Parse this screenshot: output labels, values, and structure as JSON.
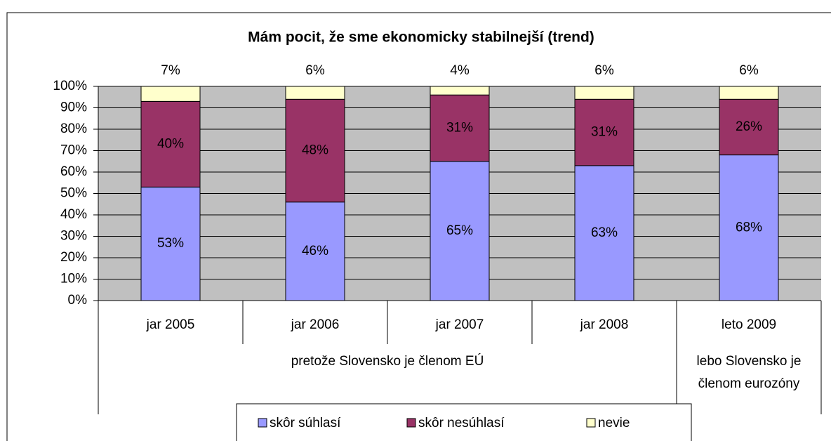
{
  "chart_data": {
    "type": "stacked_bar",
    "title": "Mám pocit, že sme ekonomicky stabilnejší (trend)",
    "groups": [
      {
        "label": "pretože Slovensko je členom EÚ",
        "categories": [
          "jar 2005",
          "jar 2006",
          "jar 2007",
          "jar 2008"
        ]
      },
      {
        "label": "lebo Slovensko je členom eurozóny",
        "categories": [
          "leto 2009"
        ]
      }
    ],
    "series": [
      {
        "name": "skôr súhlasí",
        "color": "#9999ff",
        "values": [
          53,
          46,
          65,
          63,
          68
        ],
        "value_labels": [
          "53%",
          "46%",
          "65%",
          "63%",
          "68%"
        ]
      },
      {
        "name": "skôr nesúhlasí",
        "color": "#993366",
        "values": [
          40,
          48,
          31,
          31,
          26
        ],
        "value_labels": [
          "40%",
          "48%",
          "31%",
          "31%",
          "26%"
        ]
      },
      {
        "name": "nevie",
        "color": "#ffffcc",
        "values": [
          7,
          6,
          4,
          6,
          6
        ],
        "value_labels": [
          "7%",
          "6%",
          "4%",
          "6%",
          "6%"
        ]
      }
    ],
    "ylim": [
      0,
      100
    ],
    "yticks": [
      {
        "value": 0,
        "label": "0%"
      },
      {
        "value": 10,
        "label": "10%"
      },
      {
        "value": 20,
        "label": "20%"
      },
      {
        "value": 30,
        "label": "30%"
      },
      {
        "value": 40,
        "label": "40%"
      },
      {
        "value": 50,
        "label": "50%"
      },
      {
        "value": 60,
        "label": "60%"
      },
      {
        "value": 70,
        "label": "70%"
      },
      {
        "value": 80,
        "label": "80%"
      },
      {
        "value": 90,
        "label": "90%"
      },
      {
        "value": 100,
        "label": "100%"
      }
    ],
    "grid": true,
    "legend": "bottom",
    "background": "#c0c0c0"
  }
}
